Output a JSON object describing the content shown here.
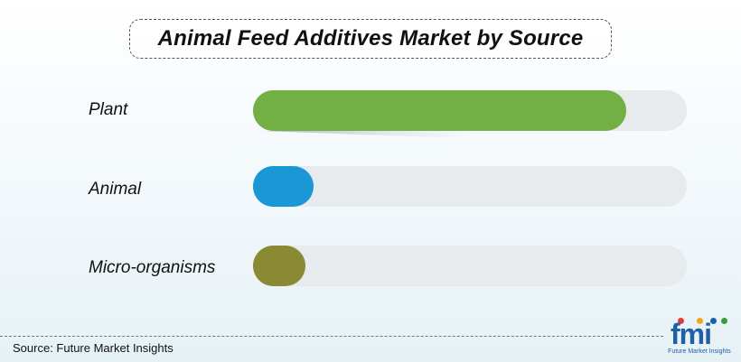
{
  "chart_data": {
    "type": "bar",
    "title": "Animal Feed Additives Market by Source",
    "categories": [
      "Plant",
      "Animal",
      "Micro-organisms"
    ],
    "values": [
      86,
      14,
      12
    ],
    "ylim": [
      0,
      100
    ],
    "colors": [
      "#72b043",
      "#1a98d5",
      "#8a8a35"
    ],
    "track_color": "#e7ebed"
  },
  "source": "Source: Future Market Insights",
  "logo": {
    "text": "fmi",
    "subtitle": "Future Market Insights",
    "dot_colors": [
      "#e23b3b",
      "#f2a51e",
      "#1f5fa8",
      "#3a9d3a"
    ]
  }
}
